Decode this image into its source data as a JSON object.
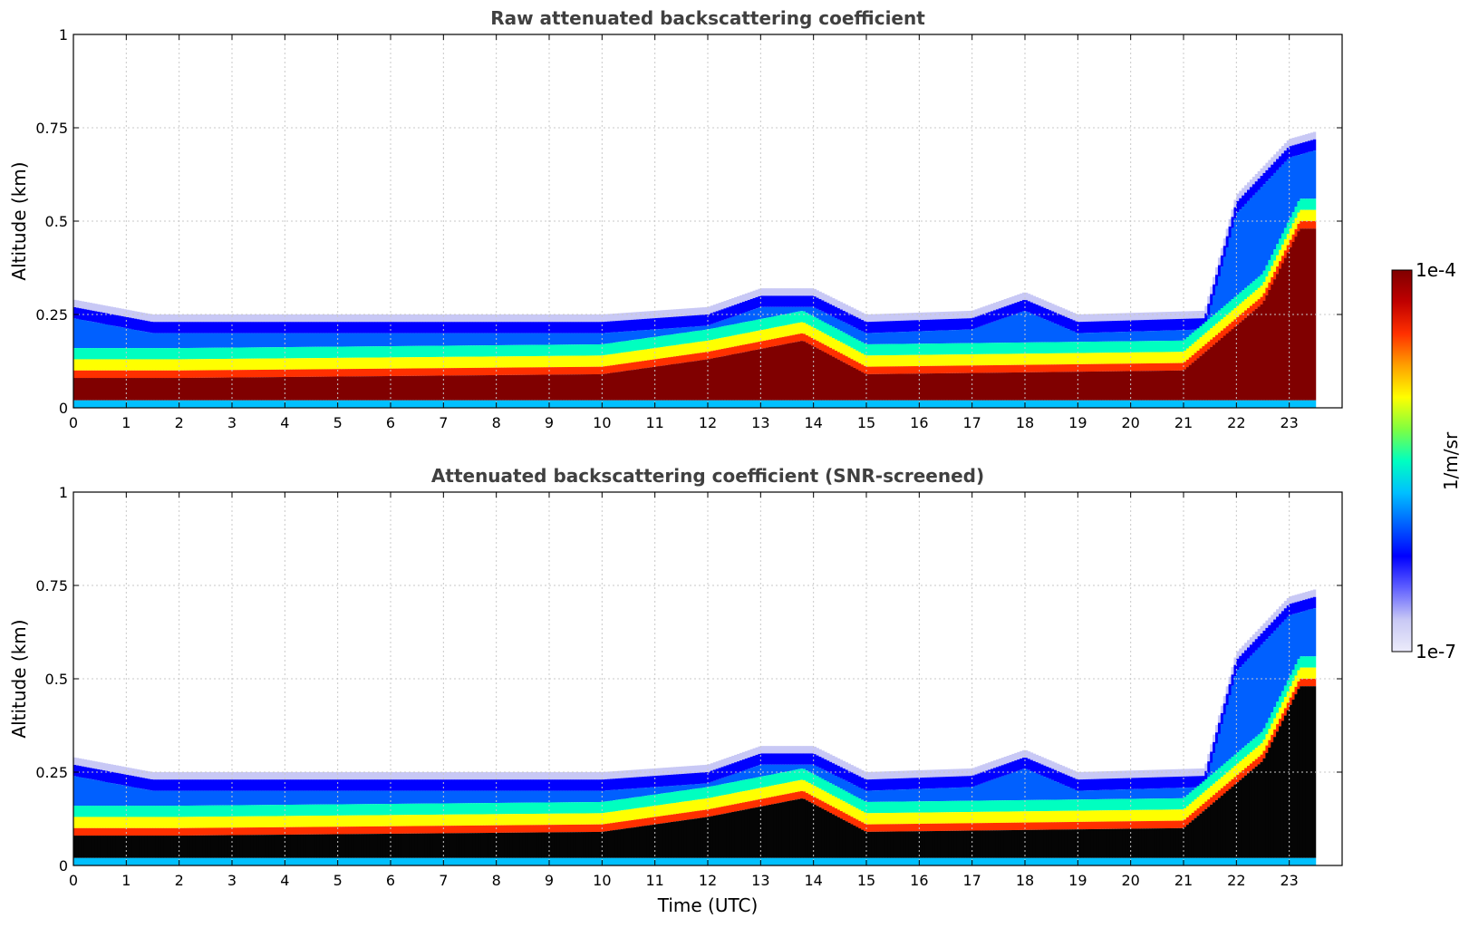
{
  "chart_data": [
    {
      "type": "heatmap",
      "title": "Raw attenuated backscattering coefficient",
      "xlabel": "",
      "ylabel": "Altitude (km)",
      "xlim": [
        0,
        24
      ],
      "ylim": [
        0,
        1
      ],
      "xticks": [
        "0",
        "1",
        "2",
        "3",
        "4",
        "5",
        "6",
        "7",
        "8",
        "9",
        "10",
        "11",
        "12",
        "13",
        "14",
        "15",
        "16",
        "17",
        "18",
        "19",
        "20",
        "21",
        "22",
        "23"
      ],
      "yticks": [
        "0",
        "0.25",
        "0.5",
        "0.75",
        "1"
      ],
      "grid": true,
      "data_end_hour": 23.5,
      "layer_top_km": [
        [
          0,
          0.27
        ],
        [
          1.5,
          0.23
        ],
        [
          10,
          0.23
        ],
        [
          12,
          0.25
        ],
        [
          13,
          0.3
        ],
        [
          14,
          0.3
        ],
        [
          15,
          0.23
        ],
        [
          17,
          0.24
        ],
        [
          18,
          0.29
        ],
        [
          19,
          0.23
        ],
        [
          21.4,
          0.24
        ],
        [
          22,
          0.55
        ],
        [
          23,
          0.7
        ],
        [
          23.5,
          0.72
        ]
      ],
      "signal_peak_km": [
        [
          0,
          0.05
        ],
        [
          2,
          0.05
        ],
        [
          10,
          0.06
        ],
        [
          12,
          0.1
        ],
        [
          13.8,
          0.15
        ],
        [
          15,
          0.06
        ],
        [
          21,
          0.07
        ],
        [
          22.5,
          0.25
        ],
        [
          23.2,
          0.45
        ],
        [
          23.5,
          0.45
        ]
      ]
    },
    {
      "type": "heatmap",
      "title": "Attenuated backscattering coefficient (SNR-screened)",
      "xlabel": "Time (UTC)",
      "ylabel": "Altitude (km)",
      "xlim": [
        0,
        24
      ],
      "ylim": [
        0,
        1
      ],
      "xticks": [
        "0",
        "1",
        "2",
        "3",
        "4",
        "5",
        "6",
        "7",
        "8",
        "9",
        "10",
        "11",
        "12",
        "13",
        "14",
        "15",
        "16",
        "17",
        "18",
        "19",
        "20",
        "21",
        "22",
        "23"
      ],
      "yticks": [
        "0",
        "0.25",
        "0.5",
        "0.75",
        "1"
      ],
      "grid": true,
      "data_end_hour": 23.5
    }
  ],
  "colorbar": {
    "min_label": "1e-7",
    "max_label": "1e-4",
    "unit_label": "1/m/sr",
    "scale": "log",
    "colormap": [
      "#ecebfa",
      "#c8c8f5",
      "#6060ff",
      "#0000ff",
      "#0060ff",
      "#00c0ff",
      "#00ffc0",
      "#80ff40",
      "#ffff00",
      "#ffa000",
      "#ff3000",
      "#c00000",
      "#800000"
    ]
  }
}
